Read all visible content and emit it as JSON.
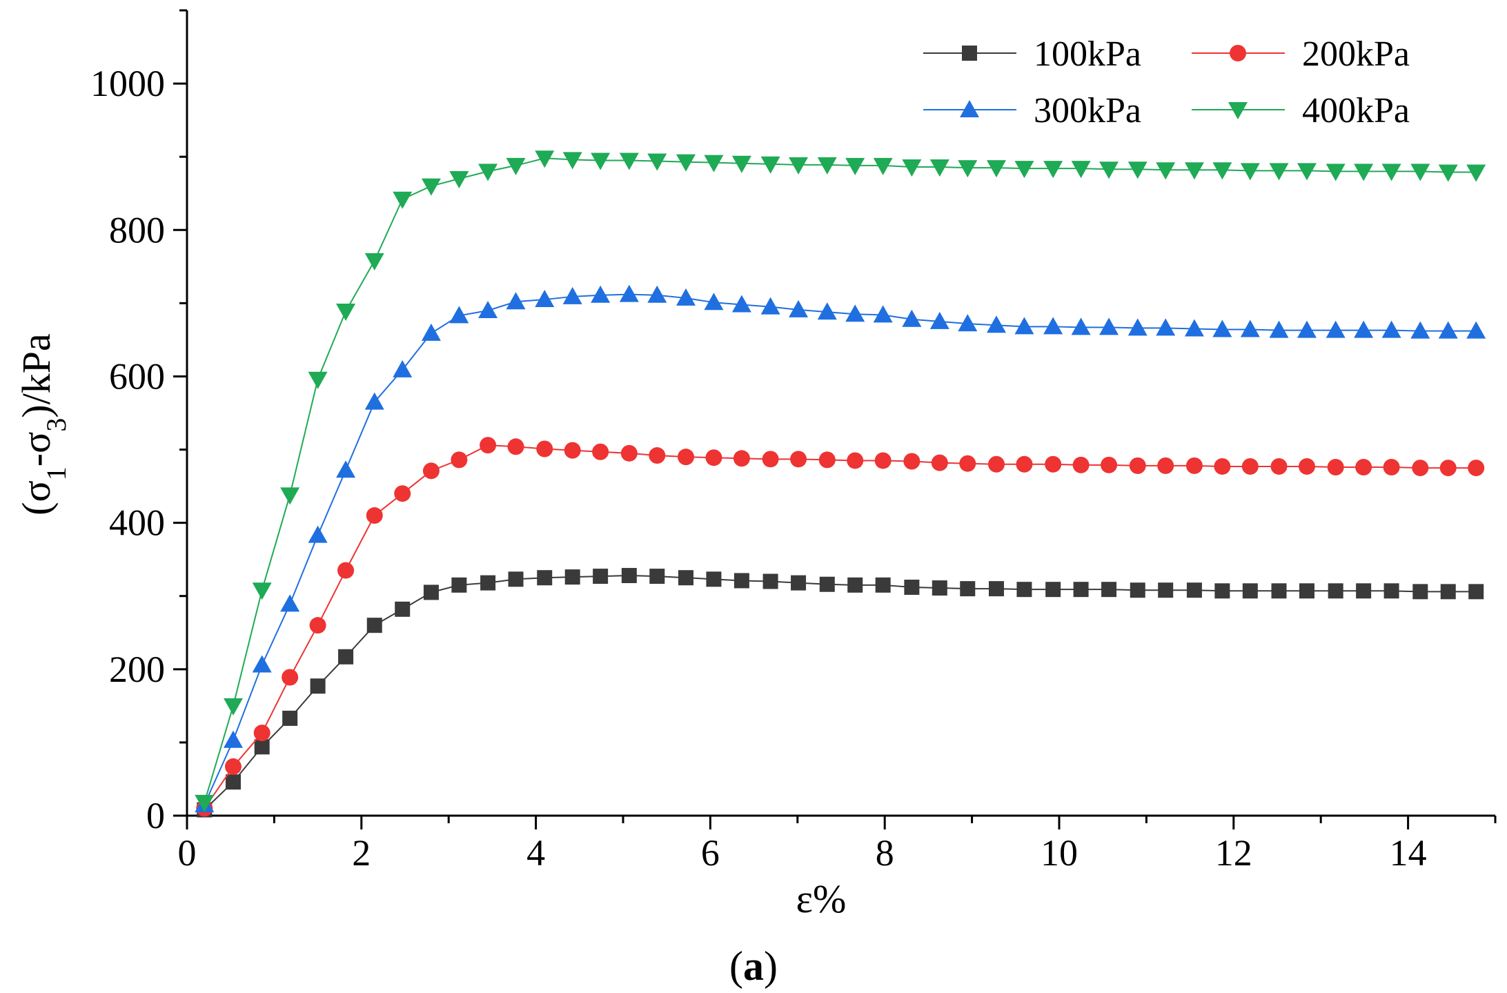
{
  "chart_data": {
    "type": "line",
    "title": "",
    "xlabel": "ε%",
    "ylabel_parts": [
      "(σ",
      "1",
      "-σ",
      "3",
      ")/kPa"
    ],
    "xlim": [
      0,
      15
    ],
    "ylim": [
      0,
      1100
    ],
    "x_ticks": [
      0,
      2,
      4,
      6,
      8,
      10,
      12,
      14
    ],
    "y_ticks": [
      0,
      200,
      400,
      600,
      800,
      1000
    ],
    "caption": {
      "open": "(",
      "letter": "a",
      "close": ")"
    },
    "legend_position": "top-right",
    "x": [
      0.2,
      0.53,
      0.86,
      1.18,
      1.5,
      1.82,
      2.15,
      2.47,
      2.8,
      3.12,
      3.45,
      3.77,
      4.1,
      4.42,
      4.74,
      5.07,
      5.39,
      5.72,
      6.04,
      6.36,
      6.69,
      7.01,
      7.34,
      7.66,
      7.98,
      8.31,
      8.63,
      8.95,
      9.28,
      9.6,
      9.93,
      10.25,
      10.57,
      10.9,
      11.22,
      11.55,
      11.87,
      12.19,
      12.52,
      12.84,
      13.17,
      13.49,
      13.81,
      14.14,
      14.46,
      14.78
    ],
    "series": [
      {
        "name": "100kPa",
        "color": "#3a3a3a",
        "marker": "square",
        "values": [
          8,
          46,
          94,
          133,
          177,
          217,
          260,
          282,
          305,
          315,
          318,
          323,
          325,
          326,
          327,
          328,
          327,
          325,
          323,
          321,
          320,
          318,
          316,
          315,
          315,
          312,
          311,
          310,
          310,
          309,
          309,
          309,
          309,
          308,
          308,
          308,
          307,
          307,
          307,
          307,
          307,
          307,
          307,
          306,
          306,
          306
        ]
      },
      {
        "name": "200kPa",
        "color": "#ee3333",
        "marker": "circle",
        "values": [
          10,
          67,
          113,
          189,
          260,
          335,
          410,
          440,
          471,
          486,
          506,
          504,
          501,
          499,
          497,
          495,
          492,
          490,
          489,
          488,
          487,
          487,
          486,
          485,
          485,
          484,
          482,
          481,
          480,
          480,
          480,
          479,
          479,
          478,
          478,
          478,
          477,
          477,
          477,
          477,
          476,
          476,
          476,
          475,
          475,
          475
        ]
      },
      {
        "name": "300kPa",
        "color": "#1f6fe0",
        "marker": "triangle-up",
        "values": [
          15,
          103,
          206,
          289,
          383,
          472,
          565,
          609,
          659,
          683,
          690,
          702,
          705,
          709,
          711,
          712,
          711,
          707,
          701,
          698,
          695,
          691,
          688,
          685,
          684,
          678,
          675,
          672,
          670,
          668,
          668,
          667,
          667,
          666,
          666,
          665,
          664,
          664,
          663,
          663,
          663,
          663,
          663,
          662,
          662,
          662
        ]
      },
      {
        "name": "400kPa",
        "color": "#1faa55",
        "marker": "triangle-down",
        "values": [
          18,
          150,
          308,
          438,
          596,
          689,
          758,
          842,
          860,
          870,
          880,
          888,
          898,
          896,
          895,
          895,
          894,
          893,
          892,
          891,
          890,
          889,
          889,
          888,
          888,
          886,
          886,
          885,
          885,
          884,
          884,
          884,
          883,
          883,
          882,
          882,
          882,
          881,
          881,
          881,
          880,
          880,
          880,
          880,
          879,
          879
        ]
      }
    ]
  }
}
